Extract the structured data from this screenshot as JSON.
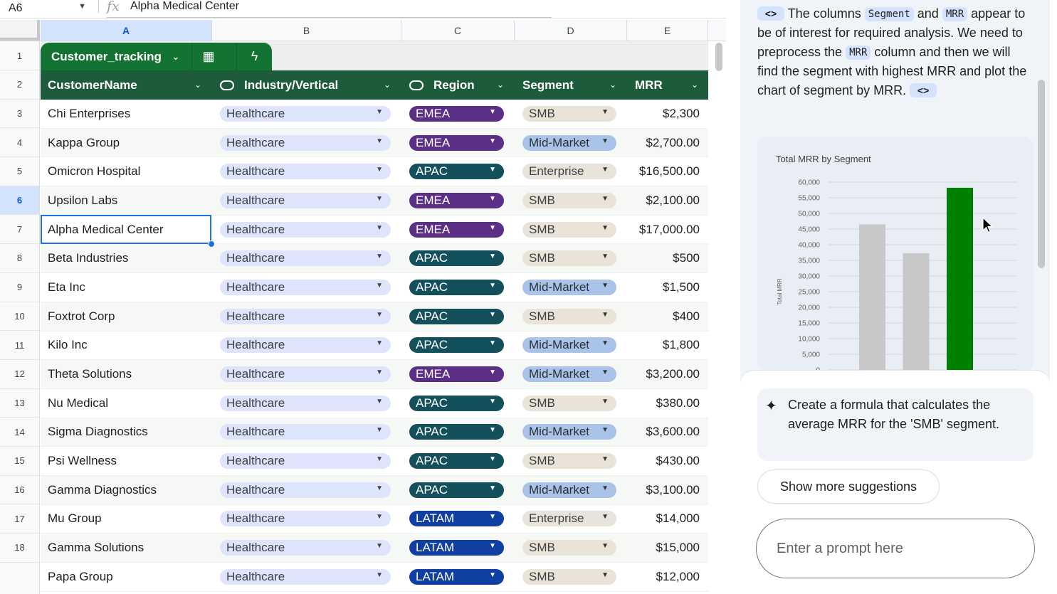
{
  "formula_bar": {
    "cell_ref": "A6",
    "fx": "fx",
    "value": "Alpha Medical Center"
  },
  "columns": [
    "A",
    "B",
    "C",
    "D",
    "E"
  ],
  "rows": [
    "1",
    "2",
    "3",
    "4",
    "5",
    "6",
    "7",
    "8",
    "9",
    "10",
    "11",
    "12",
    "13",
    "14",
    "15",
    "16",
    "17",
    "18"
  ],
  "table": {
    "name": "Customer_tracking",
    "headers": {
      "name": "CustomerName",
      "industry": "Industry/Vertical",
      "region": "Region",
      "segment": "Segment",
      "mrr": "MRR"
    },
    "rows": [
      {
        "name": "Chi Enterprises",
        "industry": "Healthcare",
        "region": "EMEA",
        "segment": "SMB",
        "mrr": "$2,300"
      },
      {
        "name": "Kappa Group",
        "industry": "Healthcare",
        "region": "EMEA",
        "segment": "Mid-Market",
        "mrr": "$2,700.00"
      },
      {
        "name": "Omicron Hospital",
        "industry": "Healthcare",
        "region": "APAC",
        "segment": "Enterprise",
        "mrr": "$16,500.00"
      },
      {
        "name": "Upsilon Labs",
        "industry": "Healthcare",
        "region": "EMEA",
        "segment": "SMB",
        "mrr": "$2,100.00"
      },
      {
        "name": "Alpha Medical Center",
        "industry": "Healthcare",
        "region": "EMEA",
        "segment": "SMB",
        "mrr": "$17,000.00"
      },
      {
        "name": "Beta Industries",
        "industry": "Healthcare",
        "region": "APAC",
        "segment": "SMB",
        "mrr": "$500"
      },
      {
        "name": "Eta Inc",
        "industry": "Healthcare",
        "region": "APAC",
        "segment": "Mid-Market",
        "mrr": "$1,500"
      },
      {
        "name": "Foxtrot Corp",
        "industry": "Healthcare",
        "region": "APAC",
        "segment": "SMB",
        "mrr": "$400"
      },
      {
        "name": "Kilo Inc",
        "industry": "Healthcare",
        "region": "APAC",
        "segment": "Mid-Market",
        "mrr": "$1,800"
      },
      {
        "name": "Theta Solutions",
        "industry": "Healthcare",
        "region": "EMEA",
        "segment": "Mid-Market",
        "mrr": "$3,200.00"
      },
      {
        "name": "Nu Medical",
        "industry": "Healthcare",
        "region": "APAC",
        "segment": "SMB",
        "mrr": "$380.00"
      },
      {
        "name": "Sigma Diagnostics",
        "industry": "Healthcare",
        "region": "APAC",
        "segment": "Mid-Market",
        "mrr": "$3,600.00"
      },
      {
        "name": "Psi Wellness",
        "industry": "Healthcare",
        "region": "APAC",
        "segment": "SMB",
        "mrr": "$430.00"
      },
      {
        "name": "Gamma Diagnostics",
        "industry": "Healthcare",
        "region": "APAC",
        "segment": "Mid-Market",
        "mrr": "$3,100.00"
      },
      {
        "name": "Mu Group",
        "industry": "Healthcare",
        "region": "LATAM",
        "segment": "Enterprise",
        "mrr": "$14,000"
      },
      {
        "name": "Gamma Solutions",
        "industry": "Healthcare",
        "region": "LATAM",
        "segment": "SMB",
        "mrr": "$15,000"
      },
      {
        "name": "Papa Group",
        "industry": "Healthcare",
        "region": "LATAM",
        "segment": "SMB",
        "mrr": "$12,000"
      }
    ]
  },
  "side_panel": {
    "message": {
      "t1": "The columns",
      "code1": "Segment",
      "t2": "and",
      "code2": "MRR",
      "t3": "appear to be of interest for required analysis. We need to preprocess the",
      "code3": "MRR",
      "t4": "column and then we will find the segment with highest MRR and plot the chart of segment by MRR.",
      "code_toggle": "<>"
    },
    "suggestion": "Create a formula that calculates the average MRR for the 'SMB' segment.",
    "more_button": "Show more suggestions",
    "prompt_placeholder": "Enter a prompt here"
  },
  "chart_data": {
    "type": "bar",
    "title": "Total MRR by Segment",
    "ylabel": "Total MRR",
    "xlabel": "",
    "ylim": [
      0,
      60000
    ],
    "yticks": [
      "0",
      "5,000",
      "10,000",
      "15,000",
      "20,000",
      "25,000",
      "30,000",
      "35,000",
      "40,000",
      "45,000",
      "50,000",
      "55,000",
      "60,000"
    ],
    "categories": [
      "",
      "",
      ""
    ],
    "values": [
      46500,
      37300,
      58200
    ],
    "colors": [
      "#c8c8c8",
      "#c8c8c8",
      "#008000"
    ],
    "grid": true
  },
  "colors": {
    "accent": "#137333",
    "header": "#1e5b3a",
    "selection": "#1a73e8"
  }
}
